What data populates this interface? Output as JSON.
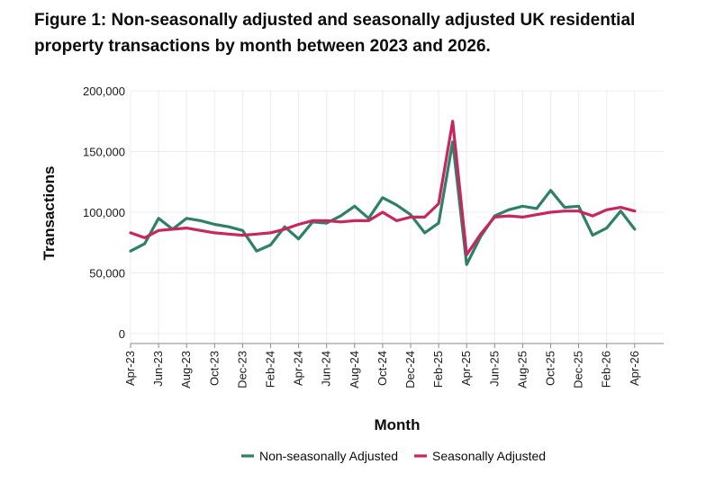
{
  "chart_data": {
    "type": "line",
    "title": "Figure 1: Non-seasonally adjusted and seasonally adjusted UK residential property transactions by month between 2023 and 2026.",
    "xlabel": "Month",
    "ylabel": "Transactions",
    "ylim": [
      0,
      200000
    ],
    "yticks": [
      "0",
      "50,000",
      "100,000",
      "150,000",
      "200,000"
    ],
    "grid": true,
    "legend_position": "bottom",
    "x": [
      "Apr-23",
      "May-23",
      "Jun-23",
      "Jul-23",
      "Aug-23",
      "Sep-23",
      "Oct-23",
      "Nov-23",
      "Dec-23",
      "Jan-24",
      "Feb-24",
      "Mar-24",
      "Apr-24",
      "May-24",
      "Jun-24",
      "Jul-24",
      "Aug-24",
      "Sep-24",
      "Oct-24",
      "Nov-24",
      "Dec-24",
      "Jan-25",
      "Feb-25",
      "Mar-25",
      "Apr-25",
      "May-25",
      "Jun-25",
      "Jul-25",
      "Aug-25",
      "Sep-25",
      "Oct-25",
      "Nov-25",
      "Dec-25",
      "Jan-26",
      "Feb-26",
      "Mar-26",
      "Apr-26"
    ],
    "xtick_labels": [
      "Apr-23",
      "Jun-23",
      "Aug-23",
      "Oct-23",
      "Dec-23",
      "Feb-24",
      "Apr-24",
      "Jun-24",
      "Aug-24",
      "Oct-24",
      "Dec-24",
      "Feb-25",
      "Apr-25",
      "Jun-25",
      "Aug-25",
      "Oct-25",
      "Dec-25",
      "Feb-26",
      "Apr-26"
    ],
    "series": [
      {
        "name": "Non-seasonally Adjusted",
        "color": "#2e8068",
        "values": [
          68000,
          74000,
          95000,
          86000,
          95000,
          93000,
          90000,
          88000,
          85000,
          68000,
          73000,
          88000,
          78000,
          92000,
          91000,
          97000,
          105000,
          95000,
          112000,
          106000,
          98000,
          83000,
          91000,
          158000,
          57000,
          80000,
          97000,
          102000,
          105000,
          103000,
          118000,
          104000,
          105000,
          81000,
          87000,
          101000,
          86000
        ]
      },
      {
        "name": "Seasonally Adjusted",
        "color": "#c8265f",
        "values": [
          83000,
          79000,
          85000,
          86000,
          87000,
          85000,
          83000,
          82000,
          81000,
          82000,
          83000,
          86000,
          90000,
          93000,
          93000,
          92000,
          93000,
          93000,
          100000,
          93000,
          96000,
          96000,
          107000,
          175000,
          65000,
          82000,
          96000,
          97000,
          96000,
          98000,
          100000,
          101000,
          101000,
          97000,
          102000,
          104000,
          101000
        ]
      }
    ]
  }
}
